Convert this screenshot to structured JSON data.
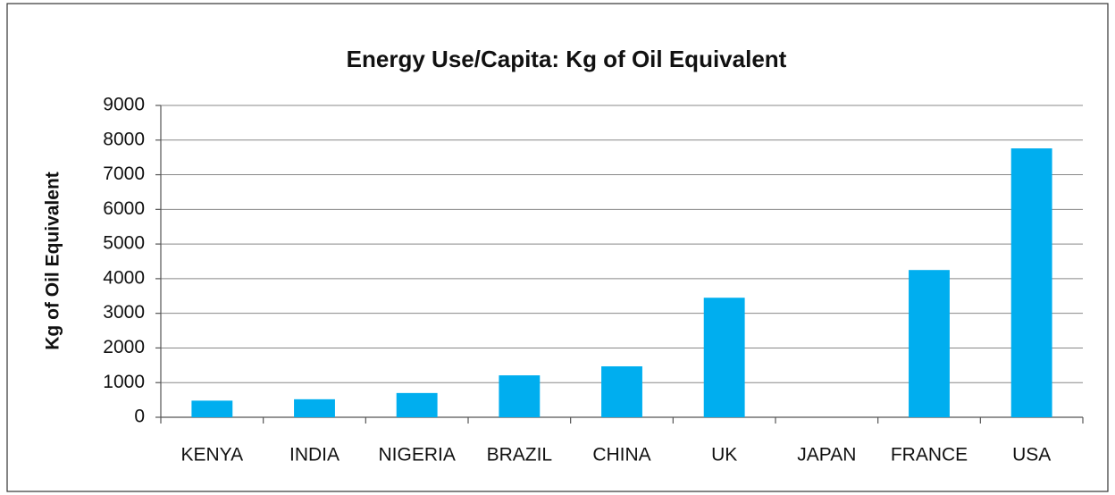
{
  "chart_data": {
    "type": "bar",
    "title": "Energy Use/Capita: Kg of Oil Equivalent",
    "y_label": "Kg of Oil Equivalent",
    "categories": [
      "KENYA",
      "INDIA",
      "NIGERIA",
      "BRAZIL",
      "CHINA",
      "UK",
      "JAPAN",
      "FRANCE",
      "USA"
    ],
    "values": [
      480,
      520,
      700,
      1210,
      1470,
      3450,
      0,
      4250,
      7760
    ],
    "color": "#00aeef",
    "ylim": [
      0,
      9000
    ],
    "yticks": [
      0,
      1000,
      2000,
      3000,
      4000,
      5000,
      6000,
      7000,
      8000,
      9000
    ],
    "grid": true
  }
}
